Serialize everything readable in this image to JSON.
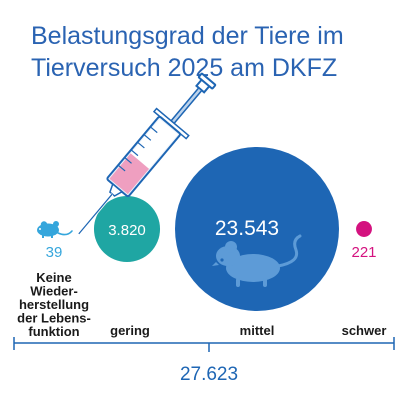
{
  "title": {
    "line1": "Belastungsgrad der Tiere im",
    "line2": "Tierversuch 2025 am DKFZ"
  },
  "total": "27.623",
  "colors": {
    "title": "#2a63b2",
    "keine": "#35a6dc",
    "gering": "#1fa6a3",
    "mittel": "#1e66b4",
    "schwer": "#d4127f",
    "axis": "#1e66b4"
  },
  "icons": [
    "mouse-icon",
    "syringe-icon"
  ],
  "chart_data": {
    "type": "bubble",
    "title": "Belastungsgrad der Tiere im Tierversuch 2025 am DKFZ",
    "categories": [
      "Keine Wieder-herstellung der Lebens-funktion",
      "gering",
      "mittel",
      "schwer"
    ],
    "values": [
      39,
      3820,
      23543,
      221
    ],
    "value_labels": [
      "39",
      "3.820",
      "23.543",
      "221"
    ],
    "category_label_lines": [
      [
        "Keine",
        "Wieder-",
        "herstellung",
        "der Lebens-",
        "funktion"
      ],
      [
        "gering"
      ],
      [
        "mittel"
      ],
      [
        "schwer"
      ]
    ],
    "series_colors": [
      "#35a6dc",
      "#1fa6a3",
      "#1e66b4",
      "#d4127f"
    ],
    "total": 27623,
    "total_label": "27.623"
  }
}
